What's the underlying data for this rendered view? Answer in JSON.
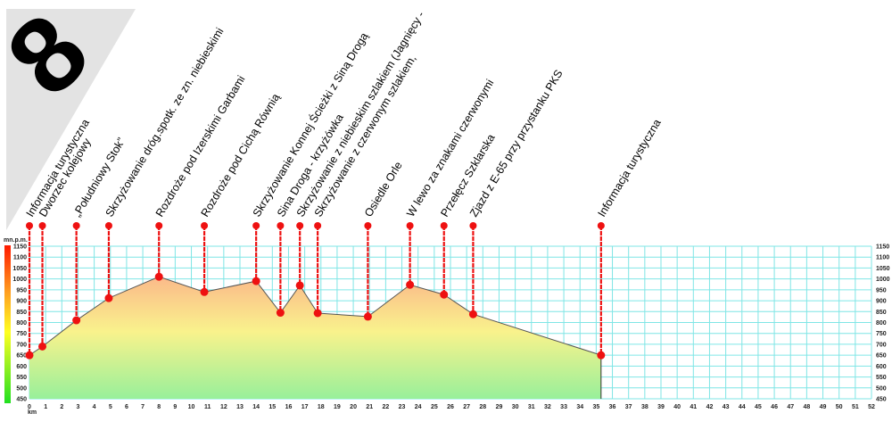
{
  "route_number": "8",
  "chart_data": {
    "type": "area",
    "title": "",
    "ylabel": "mn.p.m.",
    "xlabel": "km",
    "xlim": [
      0,
      52
    ],
    "ylim": [
      450,
      1150
    ],
    "x_ticks": [
      0,
      1,
      2,
      3,
      4,
      5,
      6,
      7,
      8,
      9,
      10,
      11,
      12,
      13,
      14,
      15,
      16,
      17,
      18,
      19,
      20,
      21,
      22,
      23,
      24,
      25,
      26,
      27,
      28,
      29,
      30,
      31,
      32,
      33,
      34,
      35,
      36,
      37,
      38,
      39,
      40,
      41,
      42,
      43,
      44,
      45,
      46,
      47,
      48,
      49,
      50,
      51,
      52
    ],
    "y_ticks": [
      1150,
      1100,
      1050,
      1000,
      950,
      900,
      850,
      800,
      750,
      700,
      650,
      600,
      550,
      500,
      450
    ],
    "grid": true,
    "colors": {
      "grid": "#7fe6e6",
      "marker": "#ee1111",
      "line": "#555555",
      "fill_top": "#fbb98a",
      "fill_mid": "#f9f28c",
      "fill_bottom": "#98f09a"
    },
    "points": [
      {
        "km": 0,
        "elev": 650,
        "label": "Informacja turystyczna"
      },
      {
        "km": 0.8,
        "elev": 690,
        "label": "Dworzec kolejowy"
      },
      {
        "km": 2.9,
        "elev": 810,
        "label": "„Południowy Stok”"
      },
      {
        "km": 4.9,
        "elev": 912,
        "label": "Skrzyżowanie dróg.spotk. ze zn. niebieskimi"
      },
      {
        "km": 8.0,
        "elev": 1010,
        "label": "Rozdroże pod Izerskimi Garbami"
      },
      {
        "km": 10.8,
        "elev": 940,
        "label": "Rozdroże pod Cichą Równią"
      },
      {
        "km": 14.0,
        "elev": 990,
        "label": "Skrzyżowanie Konnej Ścieżki z Siną Drogą"
      },
      {
        "km": 15.5,
        "elev": 845,
        "label": "Sina Droga - krzyżówka"
      },
      {
        "km": 16.7,
        "elev": 970,
        "label": "Skrzyżowanie z niebieskim szlakiem (Jagnięcy -"
      },
      {
        "km": 17.8,
        "elev": 843,
        "label": "Skrzyżowanie z czerwonym szlakiem,"
      },
      {
        "km": 20.9,
        "elev": 827,
        "label": "Osiedle Orle"
      },
      {
        "km": 23.5,
        "elev": 973,
        "label": "W lewo za znakami czerwonymi"
      },
      {
        "km": 25.6,
        "elev": 928,
        "label": "Przełęcz Szklarska"
      },
      {
        "km": 27.4,
        "elev": 838,
        "label": "Zjazd z E-65 przy przystanku PKS"
      },
      {
        "km": 35.3,
        "elev": 650,
        "label": "Informacja turystyczna"
      }
    ]
  }
}
